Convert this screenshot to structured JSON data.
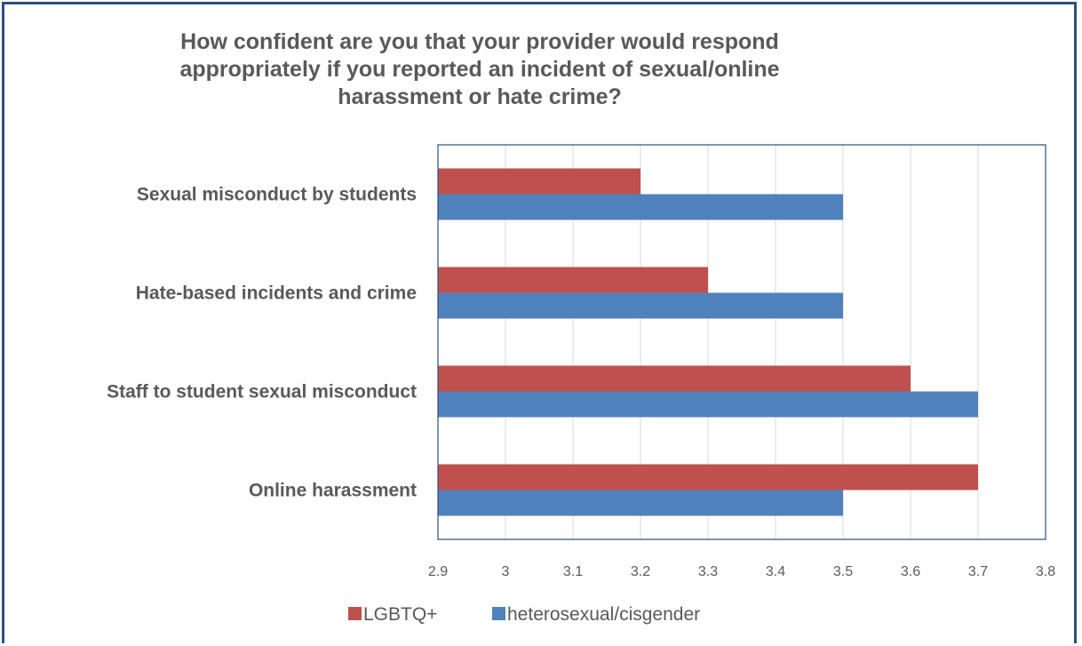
{
  "chart_data": {
    "type": "bar",
    "orientation": "horizontal",
    "title": "How confident are you that your provider would respond appropriately if you reported an incident of sexual/online harassment or hate crime?",
    "categories": [
      "Sexual misconduct by students",
      "Hate-based incidents and crime",
      "Staff to student sexual misconduct",
      "Online harassment"
    ],
    "series": [
      {
        "name": "LGBTQ+",
        "color": "#c0504d",
        "values": [
          3.2,
          3.3,
          3.6,
          3.7
        ]
      },
      {
        "name": "heterosexual/cisgender",
        "color": "#4f81bd",
        "values": [
          3.5,
          3.5,
          3.7,
          3.5
        ]
      }
    ],
    "xlim": [
      2.9,
      3.8
    ],
    "ticks": [
      "2.9",
      "3",
      "3.1",
      "3.2",
      "3.3",
      "3.4",
      "3.5",
      "3.6",
      "3.7",
      "3.8"
    ],
    "grid": true,
    "legend_position": "bottom"
  }
}
